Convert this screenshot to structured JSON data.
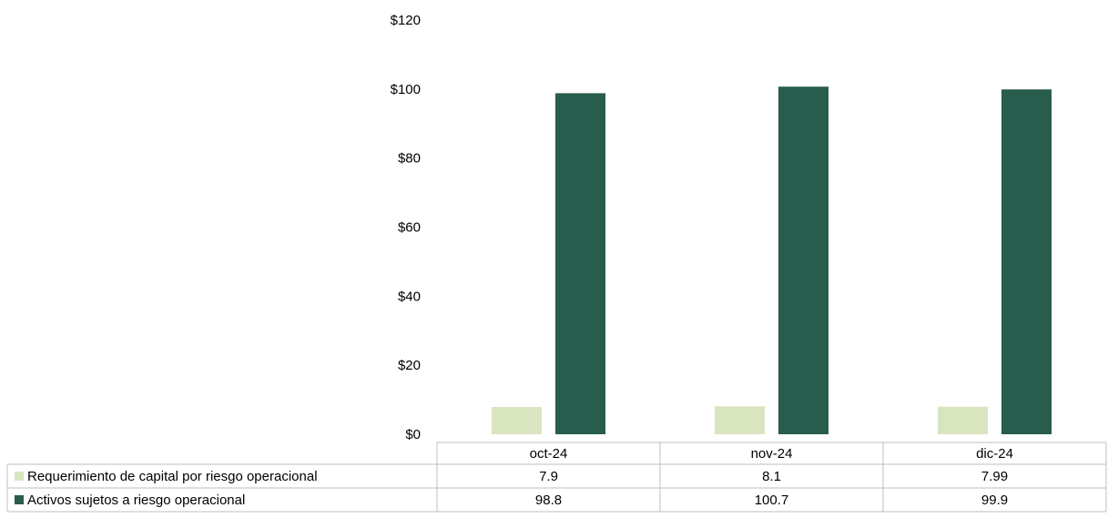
{
  "chart_data": {
    "type": "bar",
    "title": "",
    "xlabel": "",
    "ylabel": "",
    "ylim": [
      0,
      120
    ],
    "y_ticks": [
      "$0",
      "$20",
      "$40",
      "$60",
      "$80",
      "$100",
      "$120"
    ],
    "categories": [
      "oct-24",
      "nov-24",
      "dic-24"
    ],
    "series": [
      {
        "name": "Requerimiento de capital por riesgo operacional",
        "values": [
          7.9,
          8.1,
          7.99
        ],
        "labels": [
          "7.9",
          "8.1",
          "7.99"
        ],
        "color": "#d9e5bf"
      },
      {
        "name": "Activos sujetos a riesgo operacional",
        "values": [
          98.8,
          100.7,
          99.9
        ],
        "labels": [
          "98.8",
          "100.7",
          "99.9"
        ],
        "color": "#285c4d"
      }
    ],
    "grid": false,
    "legend": "data-table"
  }
}
